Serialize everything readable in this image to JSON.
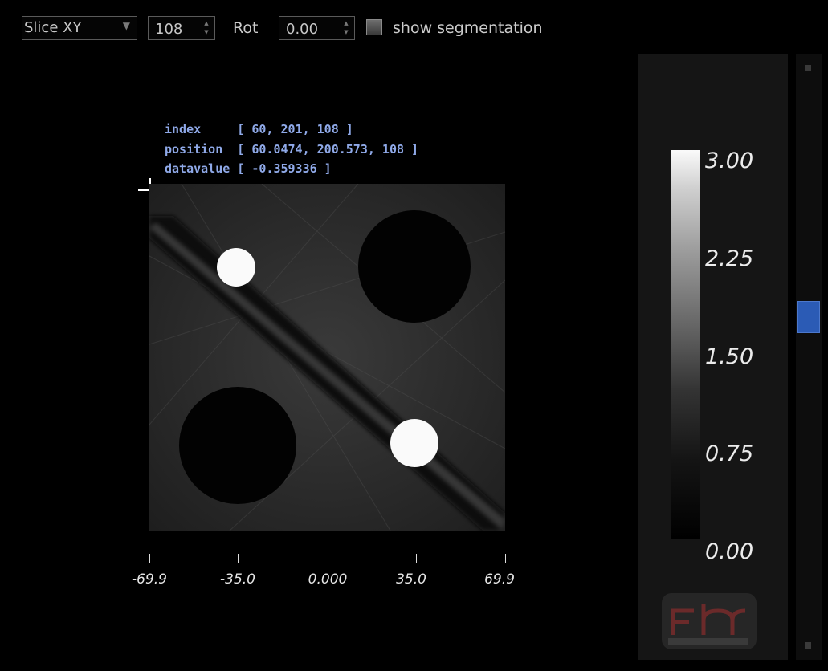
{
  "toolbar": {
    "slice_mode": "Slice XY",
    "slice_index": "108",
    "rot_label": "Rot",
    "rot_value": "0.00",
    "segmentation_label": "show segmentation"
  },
  "info": {
    "index": "index     [ 60, 201, 108 ]",
    "position": "position  [ 60.0474, 200.573, 108 ]",
    "datavalue": "datavalue [ -0.359336 ]"
  },
  "axis": {
    "ticks": [
      "-69.9",
      "-35.0",
      "0.000",
      "35.0",
      "69.9"
    ]
  },
  "colorbar": {
    "labels": [
      "3.00",
      "2.25",
      "1.50",
      "0.75",
      "0.00"
    ]
  },
  "icons": {
    "crosshair": "crosshair-icon",
    "logo": "fh-logo-icon"
  }
}
